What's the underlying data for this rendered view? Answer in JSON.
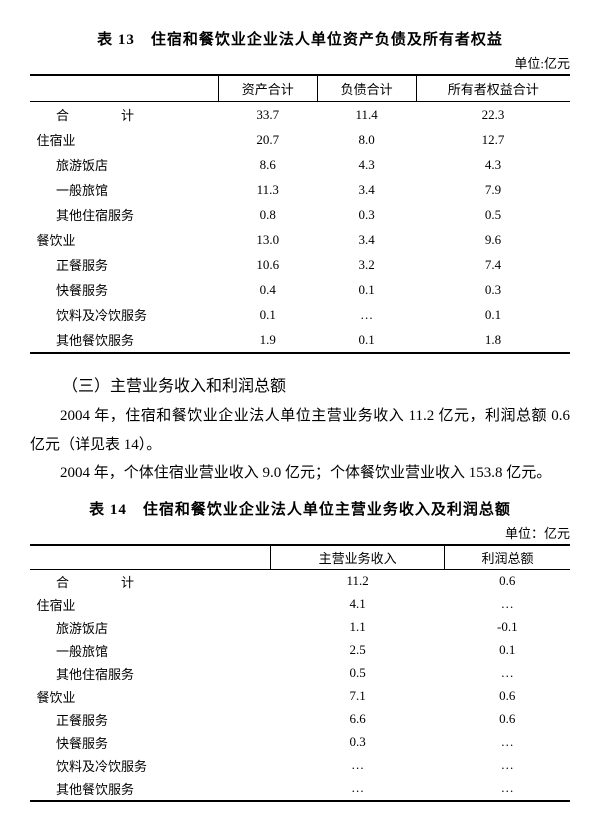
{
  "table13": {
    "title": "表 13　住宿和餐饮业企业法人单位资产负债及所有者权益",
    "unit": "单位:亿元",
    "columns": [
      "",
      "资产合计",
      "负债合计",
      "所有者权益合计"
    ],
    "rows": [
      {
        "label": "合　计",
        "indent": "total",
        "v": [
          "33.7",
          "11.4",
          "22.3"
        ]
      },
      {
        "label": "住宿业",
        "indent": "1",
        "v": [
          "20.7",
          "8.0",
          "12.7"
        ]
      },
      {
        "label": "旅游饭店",
        "indent": "2",
        "v": [
          "8.6",
          "4.3",
          "4.3"
        ]
      },
      {
        "label": "一般旅馆",
        "indent": "2",
        "v": [
          "11.3",
          "3.4",
          "7.9"
        ]
      },
      {
        "label": "其他住宿服务",
        "indent": "2",
        "v": [
          "0.8",
          "0.3",
          "0.5"
        ]
      },
      {
        "label": "餐饮业",
        "indent": "1",
        "v": [
          "13.0",
          "3.4",
          "9.6"
        ]
      },
      {
        "label": "正餐服务",
        "indent": "2",
        "v": [
          "10.6",
          "3.2",
          "7.4"
        ]
      },
      {
        "label": "快餐服务",
        "indent": "2",
        "v": [
          "0.4",
          "0.1",
          "0.3"
        ]
      },
      {
        "label": "饮料及冷饮服务",
        "indent": "2",
        "v": [
          "0.1",
          "…",
          "0.1"
        ]
      },
      {
        "label": "其他餐饮服务",
        "indent": "2",
        "v": [
          "1.9",
          "0.1",
          "1.8"
        ]
      }
    ]
  },
  "body": {
    "section_head": "（三）主营业务收入和利润总额",
    "p1": "2004 年，住宿和餐饮业企业法人单位主营业务收入 11.2 亿元，利润总额 0.6 亿元（详见表 14）。",
    "p2": "2004 年，个体住宿业营业收入 9.0 亿元；个体餐饮业营业收入 153.8 亿元。"
  },
  "table14": {
    "title": "表 14　住宿和餐饮业企业法人单位主营业务收入及利润总额",
    "unit": "单位：亿元",
    "columns": [
      "",
      "主营业务收入",
      "利润总额"
    ],
    "rows": [
      {
        "label": "合　计",
        "indent": "total",
        "v": [
          "11.2",
          "0.6"
        ]
      },
      {
        "label": "住宿业",
        "indent": "1",
        "v": [
          "4.1",
          "…"
        ]
      },
      {
        "label": "旅游饭店",
        "indent": "2",
        "v": [
          "1.1",
          "-0.1"
        ]
      },
      {
        "label": "一般旅馆",
        "indent": "2",
        "v": [
          "2.5",
          "0.1"
        ]
      },
      {
        "label": "其他住宿服务",
        "indent": "2",
        "v": [
          "0.5",
          "…"
        ]
      },
      {
        "label": "餐饮业",
        "indent": "1",
        "v": [
          "7.1",
          "0.6"
        ]
      },
      {
        "label": "正餐服务",
        "indent": "2",
        "v": [
          "6.6",
          "0.6"
        ]
      },
      {
        "label": "快餐服务",
        "indent": "2",
        "v": [
          "0.3",
          "…"
        ]
      },
      {
        "label": "饮料及冷饮服务",
        "indent": "2",
        "v": [
          "…",
          "…"
        ]
      },
      {
        "label": "其他餐饮服务",
        "indent": "2",
        "v": [
          "…",
          "…"
        ]
      }
    ]
  }
}
